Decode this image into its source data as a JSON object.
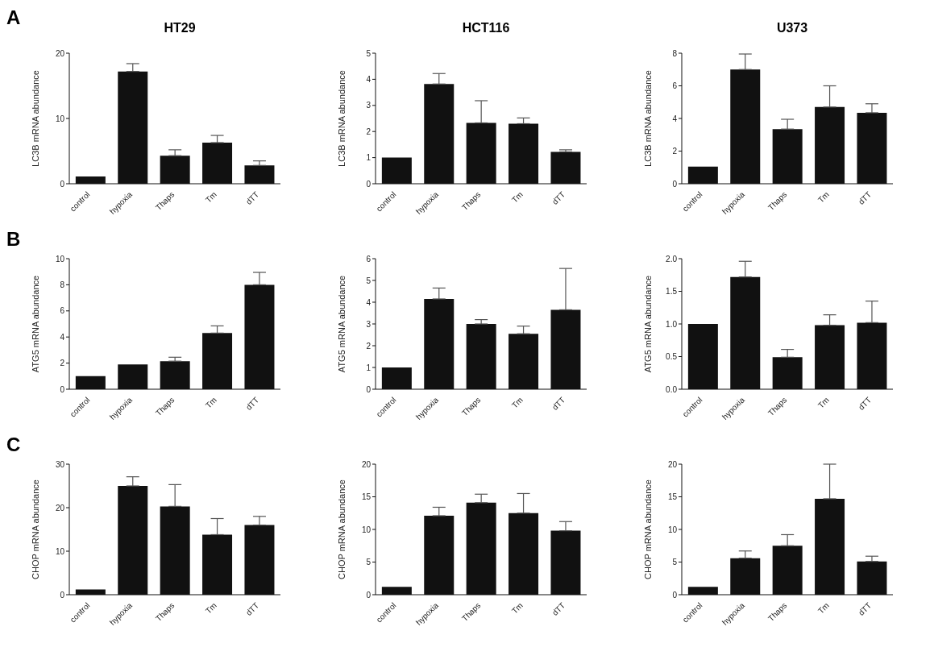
{
  "chart_data": [
    {
      "type": "bar",
      "title": "HT29",
      "annotations": [
        "A"
      ],
      "ylabel": "LC3B mRNA abundance",
      "categories": [
        "control",
        "hypoxia",
        "Thaps",
        "Tm",
        "dTT"
      ],
      "values": [
        1.1,
        17.2,
        4.3,
        6.3,
        2.8
      ],
      "errors": [
        null,
        [
          17.2,
          18.4
        ],
        [
          4.3,
          5.2
        ],
        [
          6.3,
          7.4
        ],
        [
          2.8,
          3.5
        ]
      ],
      "color": "#111111",
      "ylim": [
        0,
        20
      ],
      "yticks": [
        0,
        10,
        20
      ],
      "grid": false
    },
    {
      "type": "bar",
      "title": "HCT116",
      "ylabel": "LC3B mRNA abundance",
      "categories": [
        "control",
        "hypoxia",
        "Thaps",
        "Tm",
        "dTT"
      ],
      "values": [
        1.0,
        3.82,
        2.33,
        2.3,
        1.22
      ],
      "errors": [
        null,
        [
          3.82,
          4.22
        ],
        [
          2.33,
          3.18
        ],
        [
          2.3,
          2.52
        ],
        [
          1.22,
          1.3
        ]
      ],
      "color": "#111111",
      "ylim": [
        0,
        5
      ],
      "yticks": [
        0,
        1,
        2,
        3,
        4,
        5
      ],
      "grid": false
    },
    {
      "type": "bar",
      "title": "U373",
      "ylabel": "LC3B mRNA abundance",
      "categories": [
        "control",
        "hypoxia",
        "Thaps",
        "Tm",
        "dTT"
      ],
      "values": [
        1.05,
        7.0,
        3.35,
        4.7,
        4.35
      ],
      "errors": [
        null,
        [
          7.0,
          7.95
        ],
        [
          3.35,
          3.95
        ],
        [
          4.7,
          6.0
        ],
        [
          4.35,
          4.9
        ]
      ],
      "color": "#111111",
      "ylim": [
        0,
        8
      ],
      "yticks": [
        0,
        2,
        4,
        6,
        8
      ],
      "grid": false
    },
    {
      "type": "bar",
      "annotations": [
        "B"
      ],
      "ylabel": "ATG5 mRNA abundance",
      "categories": [
        "control",
        "hypoxia",
        "Thaps",
        "Tm",
        "dTT"
      ],
      "values": [
        1.0,
        1.9,
        2.15,
        4.3,
        8.0
      ],
      "errors": [
        null,
        null,
        [
          2.15,
          2.45
        ],
        [
          4.3,
          4.85
        ],
        [
          8.0,
          8.95
        ]
      ],
      "color": "#111111",
      "ylim": [
        0,
        10
      ],
      "yticks": [
        0,
        2,
        4,
        6,
        8,
        10
      ],
      "grid": false
    },
    {
      "type": "bar",
      "ylabel": "ATG5 mRNA abundance",
      "categories": [
        "control",
        "hypoxia",
        "Thaps",
        "Tm",
        "dTT"
      ],
      "values": [
        1.0,
        4.15,
        3.0,
        2.55,
        3.65
      ],
      "errors": [
        null,
        [
          4.15,
          4.65
        ],
        [
          3.0,
          3.2
        ],
        [
          2.55,
          2.9
        ],
        [
          3.65,
          5.55
        ]
      ],
      "color": "#111111",
      "ylim": [
        0,
        6
      ],
      "yticks": [
        0,
        1,
        2,
        3,
        4,
        5,
        6
      ],
      "grid": false
    },
    {
      "type": "bar",
      "ylabel": "ATG5 mRNA abundance",
      "categories": [
        "control",
        "hypoxia",
        "Thaps",
        "Tm",
        "dTT"
      ],
      "values": [
        1.0,
        1.72,
        0.49,
        0.98,
        1.02
      ],
      "errors": [
        null,
        [
          1.72,
          1.96
        ],
        [
          0.49,
          0.61
        ],
        [
          0.98,
          1.14
        ],
        [
          1.02,
          1.35
        ]
      ],
      "color": "#111111",
      "ylim": [
        0,
        2
      ],
      "yticks": [
        {
          "value": 0,
          "label": "0.0"
        },
        {
          "value": 0.5,
          "label": "0.5"
        },
        {
          "value": 1,
          "label": "1.0"
        },
        {
          "value": 1.5,
          "label": "1.5"
        },
        {
          "value": 2,
          "label": "2.0"
        }
      ],
      "grid": false
    },
    {
      "type": "bar",
      "annotations": [
        "C"
      ],
      "ylabel": "CHOP mRNA abundance",
      "categories": [
        "control",
        "hypoxia",
        "Thaps",
        "Tm",
        "dTT"
      ],
      "values": [
        1.2,
        25.0,
        20.3,
        13.8,
        16.0
      ],
      "errors": [
        null,
        [
          25.0,
          27.1
        ],
        [
          20.3,
          25.3
        ],
        [
          13.8,
          17.5
        ],
        [
          16.0,
          18.0
        ]
      ],
      "color": "#111111",
      "ylim": [
        0,
        30
      ],
      "yticks": [
        0,
        10,
        20,
        30
      ],
      "grid": false
    },
    {
      "type": "bar",
      "ylabel": "CHOP mRNA abundance",
      "categories": [
        "control",
        "hypoxia",
        "Thaps",
        "Tm",
        "dTT"
      ],
      "values": [
        1.2,
        12.1,
        14.1,
        12.5,
        9.8
      ],
      "errors": [
        null,
        [
          12.1,
          13.4
        ],
        [
          14.1,
          15.4
        ],
        [
          12.5,
          15.5
        ],
        [
          9.8,
          11.2
        ]
      ],
      "color": "#111111",
      "ylim": [
        0,
        20
      ],
      "yticks": [
        0,
        5,
        10,
        15,
        20
      ],
      "grid": false
    },
    {
      "type": "bar",
      "ylabel": "CHOP mRNA abundance",
      "categories": [
        "control",
        "hypoxia",
        "Thaps",
        "Tm",
        "dTT"
      ],
      "values": [
        1.2,
        5.6,
        7.5,
        14.7,
        5.1
      ],
      "errors": [
        null,
        [
          5.6,
          6.7
        ],
        [
          7.5,
          9.2
        ],
        [
          14.7,
          20.0
        ],
        [
          5.1,
          5.9
        ]
      ],
      "color": "#111111",
      "ylim": [
        0,
        20
      ],
      "yticks": [
        0,
        5,
        10,
        15,
        20
      ],
      "grid": false
    }
  ]
}
